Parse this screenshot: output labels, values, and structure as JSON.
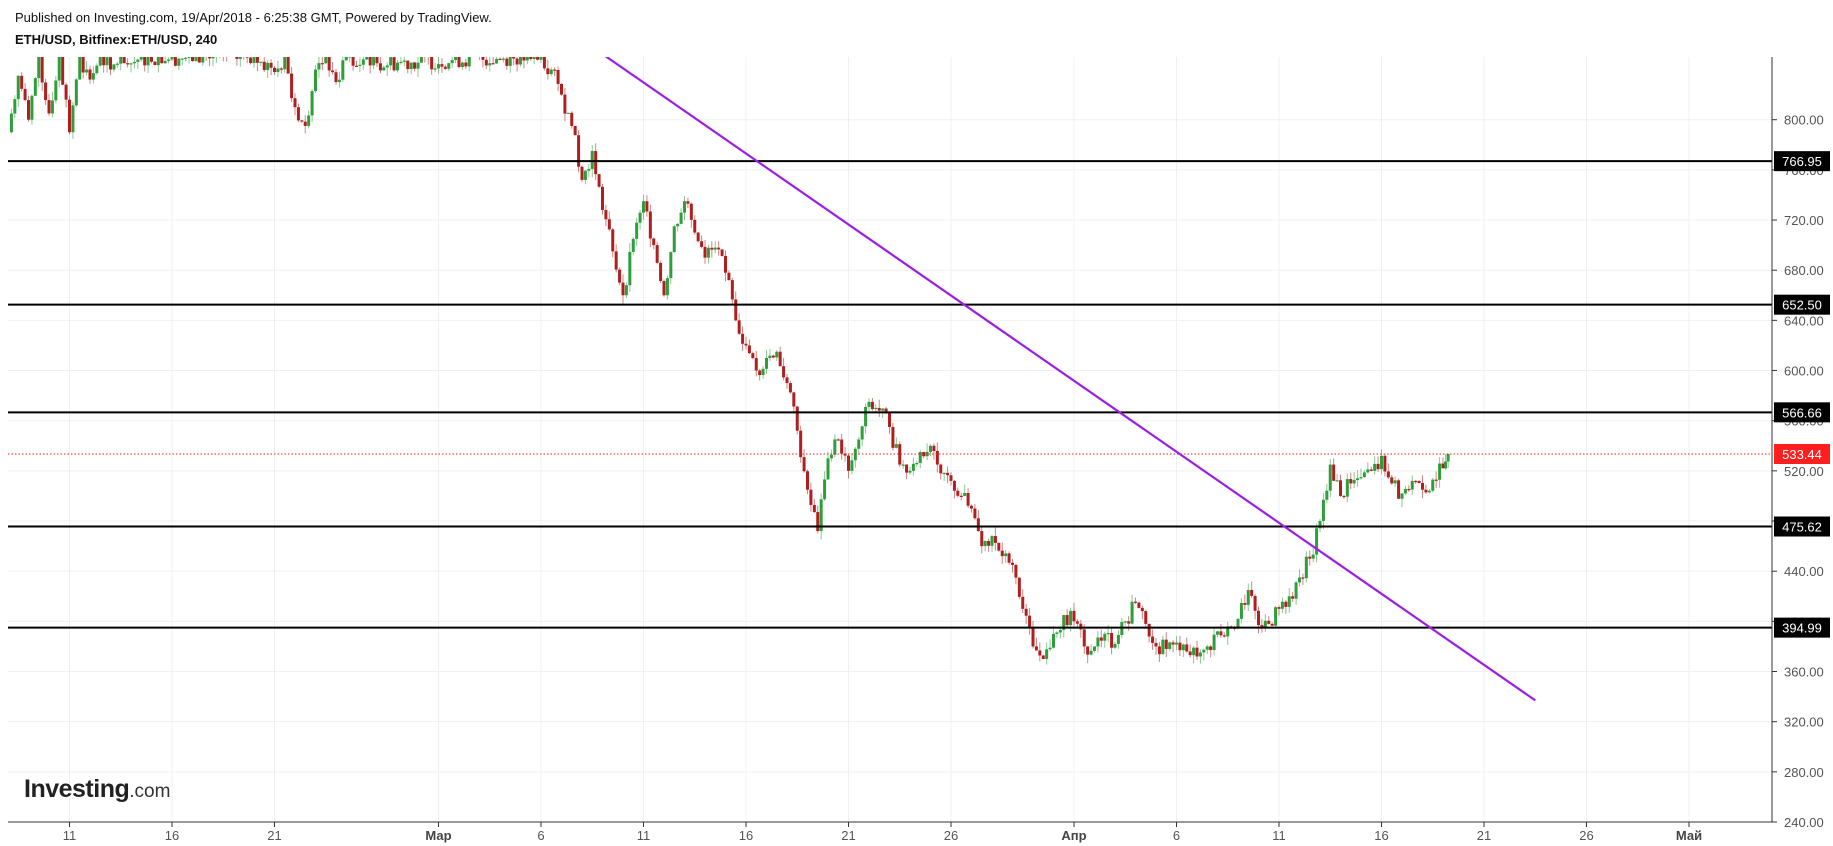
{
  "header": {
    "published": "Published on Investing.com, 19/Apr/2018 - 6:25:38 GMT, Powered by TradingView.",
    "symbol": "ETH/USD, Bitfinex:ETH/USD, 240"
  },
  "logo": {
    "brand": "Investing",
    "suffix": ".com"
  },
  "colors": {
    "up": "#2e9e3a",
    "down": "#b01e1e",
    "trendline": "#9b1de6",
    "level": "#000000",
    "last_price": "#ff1f1f",
    "grid": "#eef0f3",
    "axis": "#333333"
  },
  "chart_data": {
    "type": "candlestick",
    "symbol": "ETH/USD",
    "exchange": "Bitfinex",
    "interval": "240",
    "ylim": [
      240,
      850
    ],
    "y_ticks": [
      "240.00",
      "280.00",
      "320.00",
      "360.00",
      "400.00",
      "440.00",
      "480.00",
      "520.00",
      "560.00",
      "600.00",
      "640.00",
      "680.00",
      "720.00",
      "760.00",
      "800.00"
    ],
    "x_ticks": [
      {
        "label": "11",
        "date": "2018-02-11",
        "month": false
      },
      {
        "label": "16",
        "date": "2018-02-16",
        "month": false
      },
      {
        "label": "21",
        "date": "2018-02-21",
        "month": false
      },
      {
        "label": "Мар",
        "date": "2018-03-01",
        "month": true
      },
      {
        "label": "6",
        "date": "2018-03-06",
        "month": false
      },
      {
        "label": "11",
        "date": "2018-03-11",
        "month": false
      },
      {
        "label": "16",
        "date": "2018-03-16",
        "month": false
      },
      {
        "label": "21",
        "date": "2018-03-21",
        "month": false
      },
      {
        "label": "26",
        "date": "2018-03-26",
        "month": false
      },
      {
        "label": "Апр",
        "date": "2018-04-01",
        "month": true
      },
      {
        "label": "6",
        "date": "2018-04-06",
        "month": false
      },
      {
        "label": "11",
        "date": "2018-04-11",
        "month": false
      },
      {
        "label": "16",
        "date": "2018-04-16",
        "month": false
      },
      {
        "label": "21",
        "date": "2018-04-21",
        "month": false
      },
      {
        "label": "26",
        "date": "2018-04-26",
        "month": false
      },
      {
        "label": "Май",
        "date": "2018-05-01",
        "month": true
      }
    ],
    "horizontal_levels": [
      {
        "label": "766.95",
        "value": 766.95
      },
      {
        "label": "652.50",
        "value": 652.5
      },
      {
        "label": "566.66",
        "value": 566.66
      },
      {
        "label": "475.62",
        "value": 475.62
      },
      {
        "label": "394.99",
        "value": 394.99
      }
    ],
    "last_price": {
      "label": "533.44",
      "value": 533.44
    },
    "trendline": {
      "start": {
        "date": "2018-03-08 12:00",
        "value": 858
      },
      "end": {
        "date": "2018-04-23 12:00",
        "value": 337
      }
    },
    "price_path": [
      [
        "2018-02-08",
        790
      ],
      [
        "2018-02-08 12:00",
        835
      ],
      [
        "2018-02-09",
        800
      ],
      [
        "2018-02-09 12:00",
        850
      ],
      [
        "2018-02-10",
        805
      ],
      [
        "2018-02-10 12:00",
        850
      ],
      [
        "2018-02-11",
        790
      ],
      [
        "2018-02-11 12:00",
        850
      ],
      [
        "2018-02-12",
        832
      ],
      [
        "2018-02-12 12:00",
        850
      ],
      [
        "2018-02-13",
        840
      ],
      [
        "2018-02-13 12:00",
        850
      ],
      [
        "2018-02-14",
        845
      ],
      [
        "2018-02-14 12:00",
        850
      ],
      [
        "2018-02-20",
        850
      ],
      [
        "2018-02-21",
        838
      ],
      [
        "2018-02-21 12:00",
        850
      ],
      [
        "2018-02-22",
        810
      ],
      [
        "2018-02-22 12:00",
        795
      ],
      [
        "2018-02-23",
        840
      ],
      [
        "2018-02-23 12:00",
        850
      ],
      [
        "2018-02-24",
        830
      ],
      [
        "2018-02-24 12:00",
        850
      ],
      [
        "2018-02-25",
        843
      ],
      [
        "2018-02-25 12:00",
        850
      ],
      [
        "2018-02-26",
        845
      ],
      [
        "2018-03-05",
        850
      ],
      [
        "2018-03-06",
        850
      ],
      [
        "2018-03-06 12:00",
        840
      ],
      [
        "2018-03-07",
        820
      ],
      [
        "2018-03-07 12:00",
        795
      ],
      [
        "2018-03-08",
        752
      ],
      [
        "2018-03-08 12:00",
        775
      ],
      [
        "2018-03-09",
        728
      ],
      [
        "2018-03-09 12:00",
        695
      ],
      [
        "2018-03-10",
        660
      ],
      [
        "2018-03-10 12:00",
        705
      ],
      [
        "2018-03-11",
        735
      ],
      [
        "2018-03-11 12:00",
        700
      ],
      [
        "2018-03-12",
        660
      ],
      [
        "2018-03-12 12:00",
        715
      ],
      [
        "2018-03-13",
        735
      ],
      [
        "2018-03-13 12:00",
        710
      ],
      [
        "2018-03-14",
        690
      ],
      [
        "2018-03-14 12:00",
        698
      ],
      [
        "2018-03-15",
        678
      ],
      [
        "2018-03-15 12:00",
        640
      ],
      [
        "2018-03-16",
        620
      ],
      [
        "2018-03-16 12:00",
        600
      ],
      [
        "2018-03-17",
        610
      ],
      [
        "2018-03-17 12:00",
        615
      ],
      [
        "2018-03-18",
        590
      ],
      [
        "2018-03-18 12:00",
        552
      ],
      [
        "2018-03-19",
        505
      ],
      [
        "2018-03-19 12:00",
        472
      ],
      [
        "2018-03-20",
        530
      ],
      [
        "2018-03-20 12:00",
        545
      ],
      [
        "2018-03-21",
        520
      ],
      [
        "2018-03-21 12:00",
        545
      ],
      [
        "2018-03-22",
        575
      ],
      [
        "2018-03-22 12:00",
        568
      ],
      [
        "2018-03-23",
        555
      ],
      [
        "2018-03-23 12:00",
        525
      ],
      [
        "2018-03-24",
        520
      ],
      [
        "2018-03-24 12:00",
        535
      ],
      [
        "2018-03-25",
        540
      ],
      [
        "2018-03-25 12:00",
        518
      ],
      [
        "2018-03-26",
        512
      ],
      [
        "2018-03-26 12:00",
        500
      ],
      [
        "2018-03-27",
        490
      ],
      [
        "2018-03-27 12:00",
        460
      ],
      [
        "2018-03-28",
        468
      ],
      [
        "2018-03-28 12:00",
        452
      ],
      [
        "2018-03-29",
        445
      ],
      [
        "2018-03-29 12:00",
        410
      ],
      [
        "2018-03-30",
        380
      ],
      [
        "2018-03-30 12:00",
        370
      ],
      [
        "2018-03-31",
        390
      ],
      [
        "2018-03-31 12:00",
        405
      ],
      [
        "2018-04-01",
        400
      ],
      [
        "2018-04-01 12:00",
        380
      ],
      [
        "2018-04-02",
        380
      ],
      [
        "2018-04-02 12:00",
        390
      ],
      [
        "2018-04-03",
        382
      ],
      [
        "2018-04-03 12:00",
        400
      ],
      [
        "2018-04-04",
        415
      ],
      [
        "2018-04-04 12:00",
        398
      ],
      [
        "2018-04-05",
        380
      ],
      [
        "2018-04-05 12:00",
        378
      ],
      [
        "2018-04-06",
        383
      ],
      [
        "2018-04-06 12:00",
        376
      ],
      [
        "2018-04-07",
        372
      ],
      [
        "2018-04-07 12:00",
        380
      ],
      [
        "2018-04-08",
        392
      ],
      [
        "2018-04-08 12:00",
        396
      ],
      [
        "2018-04-09",
        402
      ],
      [
        "2018-04-09 12:00",
        425
      ],
      [
        "2018-04-10",
        397
      ],
      [
        "2018-04-10 12:00",
        398
      ],
      [
        "2018-04-11",
        410
      ],
      [
        "2018-04-11 12:00",
        420
      ],
      [
        "2018-04-12",
        435
      ],
      [
        "2018-04-12 12:00",
        450
      ],
      [
        "2018-04-13",
        480
      ],
      [
        "2018-04-13 12:00",
        525
      ],
      [
        "2018-04-14",
        500
      ],
      [
        "2018-04-14 12:00",
        510
      ],
      [
        "2018-04-15",
        515
      ],
      [
        "2018-04-15 12:00",
        520
      ],
      [
        "2018-04-16",
        532
      ],
      [
        "2018-04-16 12:00",
        510
      ],
      [
        "2018-04-17",
        502
      ],
      [
        "2018-04-17 12:00",
        512
      ],
      [
        "2018-04-18",
        505
      ],
      [
        "2018-04-18 12:00",
        513
      ],
      [
        "2018-04-19",
        522
      ],
      [
        "2018-04-19 06:00",
        533.44
      ]
    ]
  }
}
